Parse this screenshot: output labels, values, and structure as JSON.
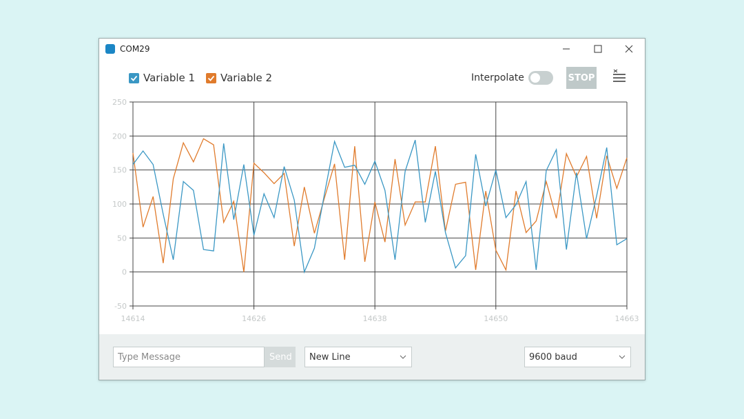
{
  "window": {
    "title": "COM29"
  },
  "toolbar": {
    "interpolate": "Interpolate",
    "stop": "STOP"
  },
  "chart_data": {
    "type": "line",
    "x": [
      14614,
      14615,
      14616,
      14617,
      14618,
      14619,
      14620,
      14621,
      14622,
      14623,
      14624,
      14625,
      14626,
      14627,
      14628,
      14629,
      14630,
      14631,
      14632,
      14633,
      14634,
      14635,
      14636,
      14637,
      14638,
      14639,
      14640,
      14641,
      14642,
      14643,
      14644,
      14645,
      14646,
      14647,
      14648,
      14649,
      14650,
      14651,
      14652,
      14653,
      14654,
      14655,
      14656,
      14657,
      14658,
      14659,
      14660,
      14661,
      14662,
      14663
    ],
    "series": [
      {
        "name": "Variable 1",
        "color": "#3a97c4",
        "values": [
          158,
          178,
          158,
          85,
          18,
          133,
          120,
          33,
          31,
          189,
          77,
          158,
          54,
          115,
          80,
          155,
          106,
          0,
          35,
          115,
          192,
          154,
          157,
          129,
          163,
          120,
          18,
          148,
          194,
          73,
          148,
          58,
          6,
          24,
          173,
          97,
          150,
          80,
          99,
          133,
          3,
          149,
          180,
          33,
          146,
          49,
          112,
          183,
          40,
          49
        ]
      },
      {
        "name": "Variable 2",
        "color": "#e07b2c",
        "values": [
          175,
          66,
          111,
          13,
          137,
          190,
          162,
          196,
          187,
          73,
          104,
          0,
          160,
          146,
          130,
          145,
          38,
          125,
          57,
          109,
          159,
          18,
          185,
          15,
          103,
          44,
          166,
          69,
          103,
          103,
          185,
          60,
          129,
          132,
          3,
          119,
          32,
          3,
          119,
          58,
          75,
          133,
          79,
          174,
          140,
          170,
          79,
          171,
          123,
          168
        ]
      }
    ],
    "xlim": [
      14614,
      14663
    ],
    "ylim": [
      -50,
      250
    ],
    "xticks": [
      14614,
      14626,
      14638,
      14650,
      14663
    ],
    "yticks": [
      -50,
      0,
      50,
      100,
      150,
      200,
      250
    ],
    "grid": true
  },
  "footer": {
    "message_placeholder": "Type Message",
    "send": "Send",
    "line_ending": "New Line",
    "baud": "9600 baud"
  }
}
